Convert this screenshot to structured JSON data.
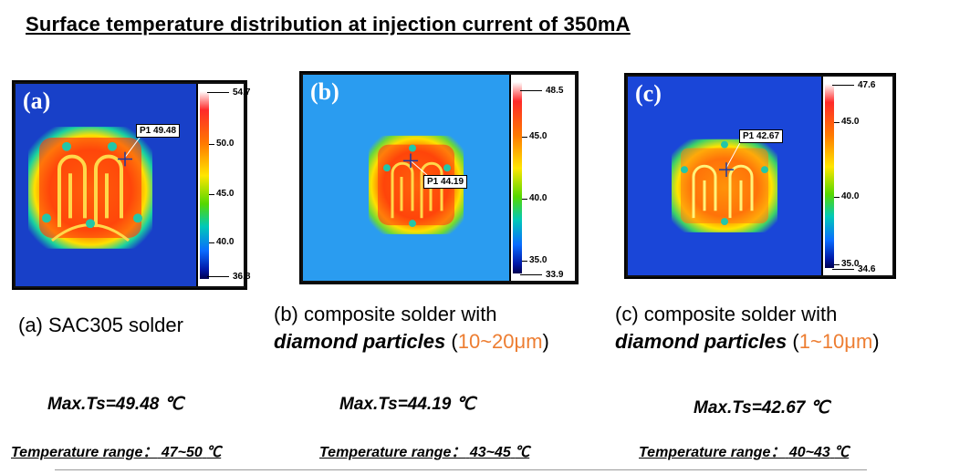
{
  "title": "Surface temperature distribution at injection current of 350mA",
  "unit": "℃",
  "panels": [
    {
      "letter": "(a)",
      "probe": "P1 49.48",
      "scale_ticks": [
        "54.7",
        "50.0",
        "45.0",
        "40.0",
        "36.8"
      ],
      "caption_line1": "(a) SAC305 solder",
      "caption_line2_em": "",
      "caption_range": "",
      "maxts": "Max.Ts=49.48",
      "range_label": "Temperature range：",
      "range_value": "47~50"
    },
    {
      "letter": "(b)",
      "probe": "P1 44.19",
      "scale_ticks": [
        "48.5",
        "45.0",
        "40.0",
        "35.0",
        "33.9"
      ],
      "caption_line1": "(b) composite solder with",
      "caption_line2_em": "diamond particles",
      "caption_range": "10~20μm",
      "maxts": "Max.Ts=44.19",
      "range_label": "Temperature range：",
      "range_value": "43~45"
    },
    {
      "letter": "(c)",
      "probe": "P1 42.67",
      "scale_ticks": [
        "47.6",
        "45.0",
        "40.0",
        "35.0",
        "34.6"
      ],
      "caption_line1": "(c) composite solder with",
      "caption_line2_em": "diamond particles",
      "caption_range": "1~10μm",
      "maxts": "Max.Ts=42.67",
      "range_label": "Temperature range：",
      "range_value": "40~43"
    }
  ],
  "colors": {
    "accent_orange": "#ed7d31",
    "bg_a": "#1840c8",
    "bg_b": "#2a9cf0",
    "bg_c": "#1a46d8"
  }
}
